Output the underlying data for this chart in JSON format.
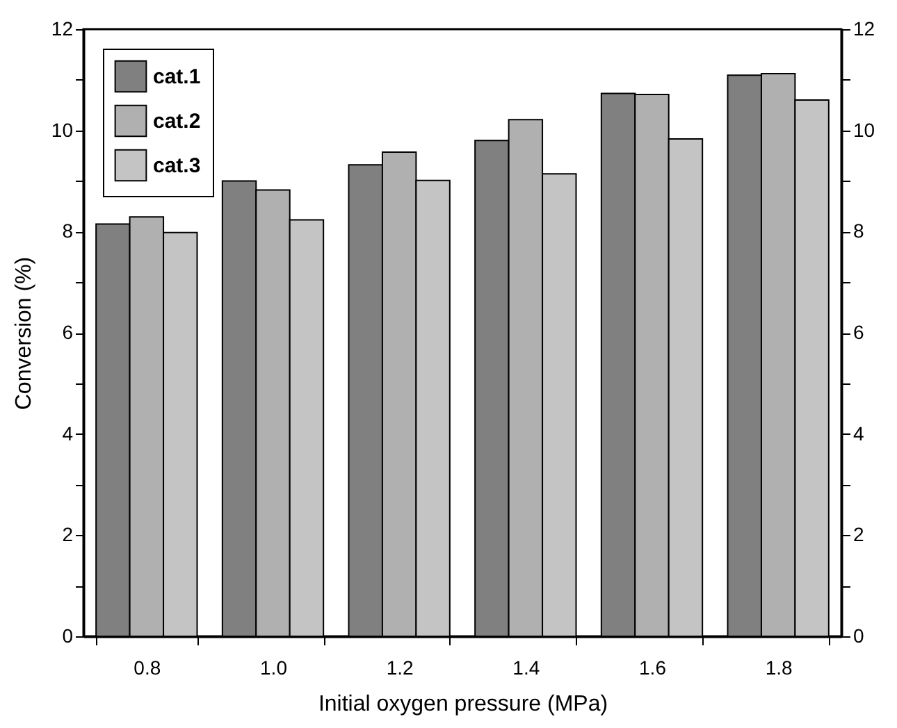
{
  "chart_data": {
    "type": "bar",
    "xlabel": "Initial oxygen pressure (MPa)",
    "ylabel": "Conversion (%)",
    "categories": [
      "0.8",
      "1.0",
      "1.2",
      "1.4",
      "1.6",
      "1.8"
    ],
    "series": [
      {
        "name": "cat.1",
        "color": "#808080",
        "values": [
          8.15,
          9.0,
          9.32,
          9.8,
          10.73,
          11.09
        ]
      },
      {
        "name": "cat.2",
        "color": "#b0b0b0",
        "values": [
          8.29,
          8.82,
          9.57,
          10.21,
          10.71,
          11.12
        ]
      },
      {
        "name": "cat.3",
        "color": "#c4c4c4",
        "values": [
          7.98,
          8.23,
          9.01,
          9.14,
          9.83,
          10.6
        ]
      }
    ],
    "ylim": [
      0,
      12
    ],
    "yticks": [
      0,
      {
        "value": 1,
        "label": null
      },
      2,
      {
        "value": 3,
        "label": null
      },
      4,
      {
        "value": 5,
        "label": null
      },
      6,
      {
        "value": 7,
        "label": null
      },
      8,
      {
        "value": 9,
        "label": null
      },
      10,
      {
        "value": 11,
        "label": null
      },
      12
    ],
    "y2lim": [
      0,
      12
    ],
    "y2ticks": [
      0,
      {
        "value": 1,
        "label": null
      },
      2,
      {
        "value": 3,
        "label": null
      },
      4,
      {
        "value": 5,
        "label": null
      },
      6,
      {
        "value": 7,
        "label": null
      },
      8,
      {
        "value": 9,
        "label": null
      },
      10,
      {
        "value": 11,
        "label": null
      },
      12
    ],
    "legend": "top left",
    "grid": false
  }
}
